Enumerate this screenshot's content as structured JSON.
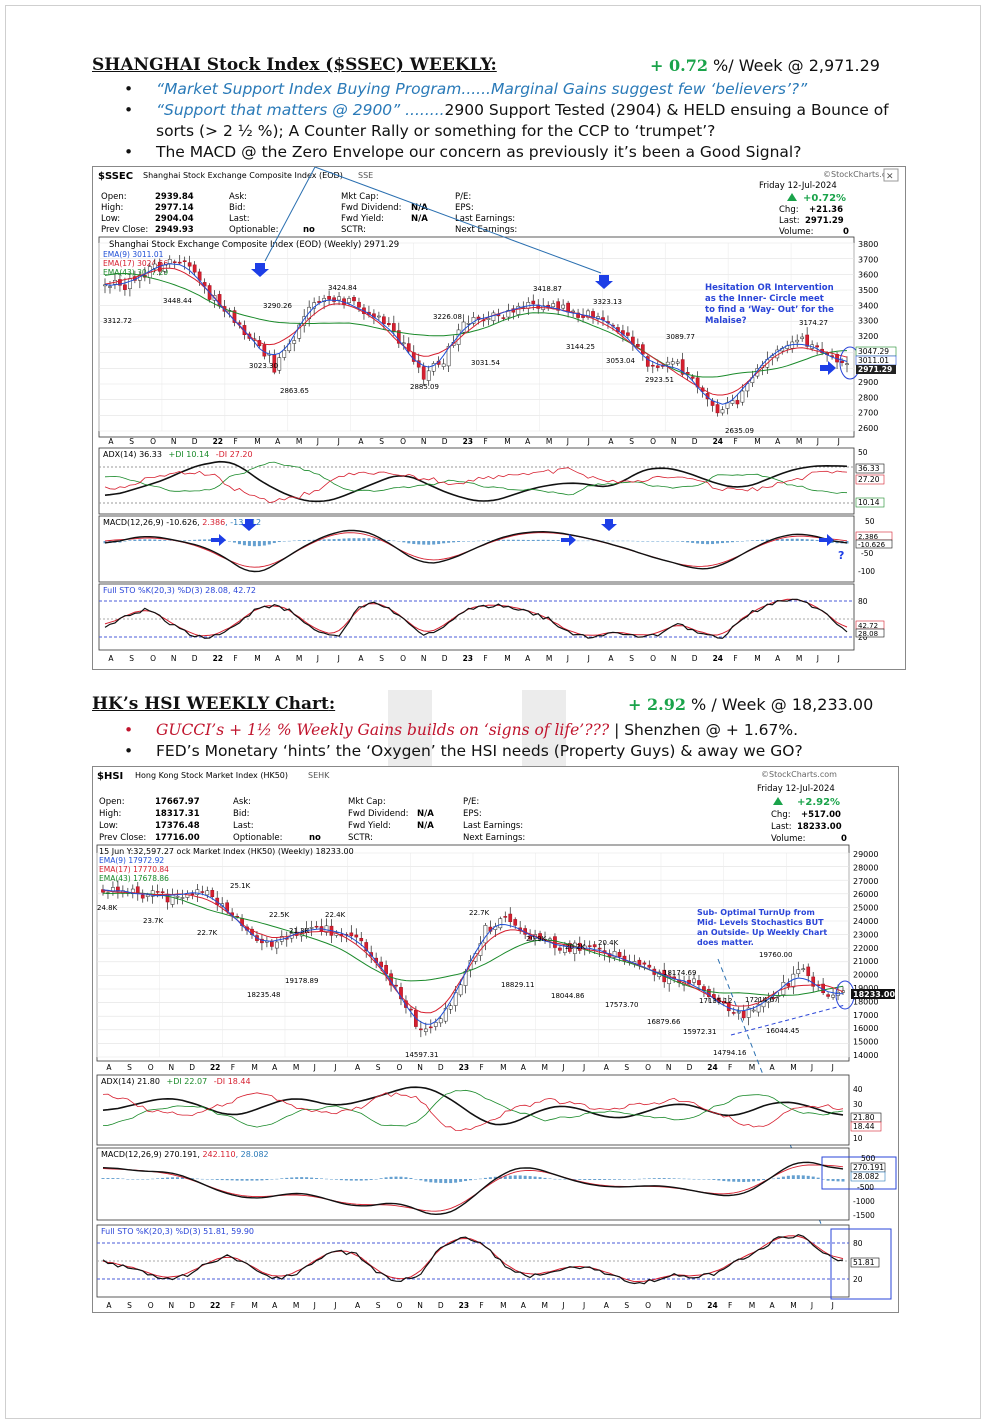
{
  "sections": [
    {
      "title": "SHANGHAI Stock Index ($SSEC) WEEKLY",
      "perf": {
        "prefix": "+ ",
        "pct": "0.72",
        "suffix": " %/ Week @ 2,971.29"
      },
      "bullets": [
        {
          "a": "“Market Support Index Buying Program......Marginal Gains suggest few ‘believers’?”",
          "b": ""
        },
        {
          "a": "“Support that matters @ 2900” ........",
          "b": "2900 Support Tested (2904) & HELD ensuing a Bounce of sorts (> 2 ½ %); A Counter Rally or something for the CCP to ‘trumpet’?"
        },
        {
          "a": "",
          "b": "The MACD @ the Zero Envelope our concern as previously it’s been a Good Signal?"
        }
      ],
      "chart": {
        "symbol": "$SSEC",
        "name": "Shanghai Stock Exchange Composite Index (EOD)",
        "exchange": "SSE",
        "watermark": "©StockCharts.com",
        "quote": {
          "rows": [
            [
              "Open:",
              "2939.84",
              "Ask:",
              "",
              "Mkt Cap:",
              "",
              "P/E:",
              ""
            ],
            [
              "High:",
              "2977.14",
              "Bid:",
              "",
              "Fwd Dividend:",
              "N/A",
              "EPS:",
              ""
            ],
            [
              "Low:",
              "2904.04",
              "Last:",
              "",
              "Fwd Yield:",
              "N/A",
              "Last Earnings:",
              ""
            ],
            [
              "Prev Close:",
              "2949.93",
              "Optionable:",
              "no",
              "SCTR:",
              "",
              "Next Earnings:",
              ""
            ]
          ],
          "date": "Friday  12-Jul-2024",
          "pct": "+0.72%",
          "chg_label": "Chg:",
          "chg": "+21.36",
          "last_label": "Last:",
          "last": "2971.29",
          "vol_label": "Volume:",
          "vol": "0"
        },
        "legend": "Shanghai Stock Exchange Composite Index (EOD) (Weekly) 2971.29",
        "emas": [
          "EMA(9) 3011.01",
          "EMA(17) 3024.56",
          "EMA(43) 3047.29"
        ],
        "ema_colors": [
          "#1f4fd6",
          "#d61f2f",
          "#1a8a2a"
        ],
        "yticks": [
          "3800",
          "3700",
          "3600",
          "3500",
          "3400",
          "3300",
          "3200",
          "3100",
          "3000",
          "2900",
          "2800",
          "2700",
          "2600"
        ],
        "price_labels": [
          "3312.72",
          "3448.44",
          "3290.26",
          "3424.84",
          "3226.08",
          "3418.87",
          "3323.13",
          "3174.27",
          "3089.77",
          "3144.25",
          "3053.04",
          "3023.30",
          "2863.65",
          "2885.09",
          "3031.54",
          "2923.51",
          "2635.09"
        ],
        "right_tags": [
          "3047.29",
          "3011.01",
          "2971.29"
        ],
        "annotation": "Hesitation OR Intervention as the Inner- Circle meet to find a ‘Way– Out’ for the Malaise?",
        "months": [
          "A",
          "S",
          "O",
          "N",
          "D",
          "22",
          "F",
          "M",
          "A",
          "M",
          "J",
          "J",
          "A",
          "S",
          "O",
          "N",
          "D",
          "23",
          "F",
          "M",
          "A",
          "M",
          "J",
          "J",
          "A",
          "S",
          "O",
          "N",
          "D",
          "24",
          "F",
          "M",
          "A",
          "M",
          "J",
          "J"
        ],
        "adx": {
          "label": "ADX(14) 36.33",
          "pdi": "+DI 10.14",
          "mdi": "-DI 27.20",
          "ticks": [
            "50",
            "10"
          ],
          "tags": [
            "36.33",
            "27.20",
            "10.14"
          ]
        },
        "macd": {
          "label": "MACD(12,26,9) -10.626, ",
          "sig": "2.386",
          "hist": ", -13.012",
          "ticks": [
            "50",
            "-50",
            "-100"
          ],
          "tags": [
            "2.386",
            "-10.626"
          ],
          "question": "?"
        },
        "sto": {
          "label": "Full STO %K(20,3) %D(3) 28.08, 42.72",
          "ticks": [
            "80",
            "20"
          ],
          "tags": [
            "42.72",
            "28.08"
          ]
        }
      }
    },
    {
      "title": "HK’s HSI WEEKLY Chart",
      "perf": {
        "prefix": "+ ",
        "pct": "2.92",
        "suffix": " % / Week @ 18,233.00"
      },
      "bullets": [
        {
          "a": "GUCCI’s + 1½ % Weekly Gains builds on ‘signs of life’???",
          "b": " | Shenzhen @ + 1.67%."
        },
        {
          "a": "",
          "b": "FED’s Monetary ‘hints’ the ‘Oxygen’ the HSI needs (Property Guys) & away we GO?"
        }
      ],
      "chart": {
        "symbol": "$HSI",
        "name": "Hong Kong Stock Market Index (HK50)",
        "exchange": "SEHK",
        "watermark": "©StockCharts.com",
        "quote": {
          "rows": [
            [
              "Open:",
              "17667.97",
              "Ask:",
              "",
              "Mkt Cap:",
              "",
              "P/E:",
              ""
            ],
            [
              "High:",
              "18317.31",
              "Bid:",
              "",
              "Fwd Dividend:",
              "N/A",
              "EPS:",
              ""
            ],
            [
              "Low:",
              "17376.48",
              "Last:",
              "",
              "Fwd Yield:",
              "N/A",
              "Last Earnings:",
              ""
            ],
            [
              "Prev Close:",
              "17716.00",
              "Optionable:",
              "no",
              "SCTR:",
              "",
              "Next Earnings:",
              ""
            ]
          ],
          "date": "Friday  12-Jul-2024",
          "pct": "+2.92%",
          "chg_label": "Chg:",
          "chg": "+517.00",
          "last_label": "Last:",
          "last": "18233.00",
          "vol_label": "Volume:",
          "vol": "0"
        },
        "legend": "15 Jun Y:32,597.27 ock Market Index (HK50) (Weekly) 18233.00",
        "emas": [
          "EMA(9) 17972.92",
          "EMA(17) 17770.84",
          "EMA(43) 17678.86"
        ],
        "ema_colors": [
          "#1f4fd6",
          "#d61f2f",
          "#1a8a2a"
        ],
        "yticks": [
          "29000",
          "28000",
          "27000",
          "26000",
          "25000",
          "24000",
          "23000",
          "22000",
          "21000",
          "20000",
          "19000",
          "18000",
          "17000",
          "16000",
          "15000",
          "14000"
        ],
        "price_labels": [
          "24.8K",
          "23.7K",
          "25.1K",
          "22.7K",
          "22.5K",
          "21.3K",
          "22.4K",
          "19178.89",
          "18235.48",
          "14597.31",
          "22.7K",
          "20.9K",
          "20.2K",
          "20.4K",
          "18829.11",
          "18044.86",
          "17573.70",
          "16879.66",
          "18174.69",
          "17135.12",
          "15972.31",
          "14794.16",
          "17214.67",
          "19760.00",
          "16044.45"
        ],
        "right_tags": [
          "18233.00"
        ],
        "annotation": "Sub- Optimal TurnUp from Mid- Levels Stochastics BUT an Outside- Up Weekly Chart does matter.",
        "months": [
          "A",
          "S",
          "O",
          "N",
          "D",
          "22",
          "F",
          "M",
          "A",
          "M",
          "J",
          "J",
          "A",
          "S",
          "O",
          "N",
          "D",
          "23",
          "F",
          "M",
          "A",
          "M",
          "J",
          "J",
          "A",
          "S",
          "O",
          "N",
          "D",
          "24",
          "F",
          "M",
          "A",
          "M",
          "J",
          "J"
        ],
        "adx": {
          "label": "ADX(14) 21.80",
          "pdi": "+DI 22.07",
          "mdi": "-DI 18.44",
          "ticks": [
            "40",
            "30",
            "20",
            "10"
          ],
          "tags": [
            "21.80",
            "18.44"
          ]
        },
        "macd": {
          "label": "MACD(12,26,9) 270.191, ",
          "sig": "242.110",
          "hist": ", 28.082",
          "ticks": [
            "500",
            "-500",
            "-1000",
            "-1500"
          ],
          "tags": [
            "270.191",
            "28.082"
          ],
          "question": ""
        },
        "sto": {
          "label": "Full STO %K(20,3) %D(3) 51.81, 59.90",
          "ticks": [
            "80",
            "50",
            "20"
          ],
          "tags": [
            "51.81"
          ]
        }
      }
    }
  ]
}
